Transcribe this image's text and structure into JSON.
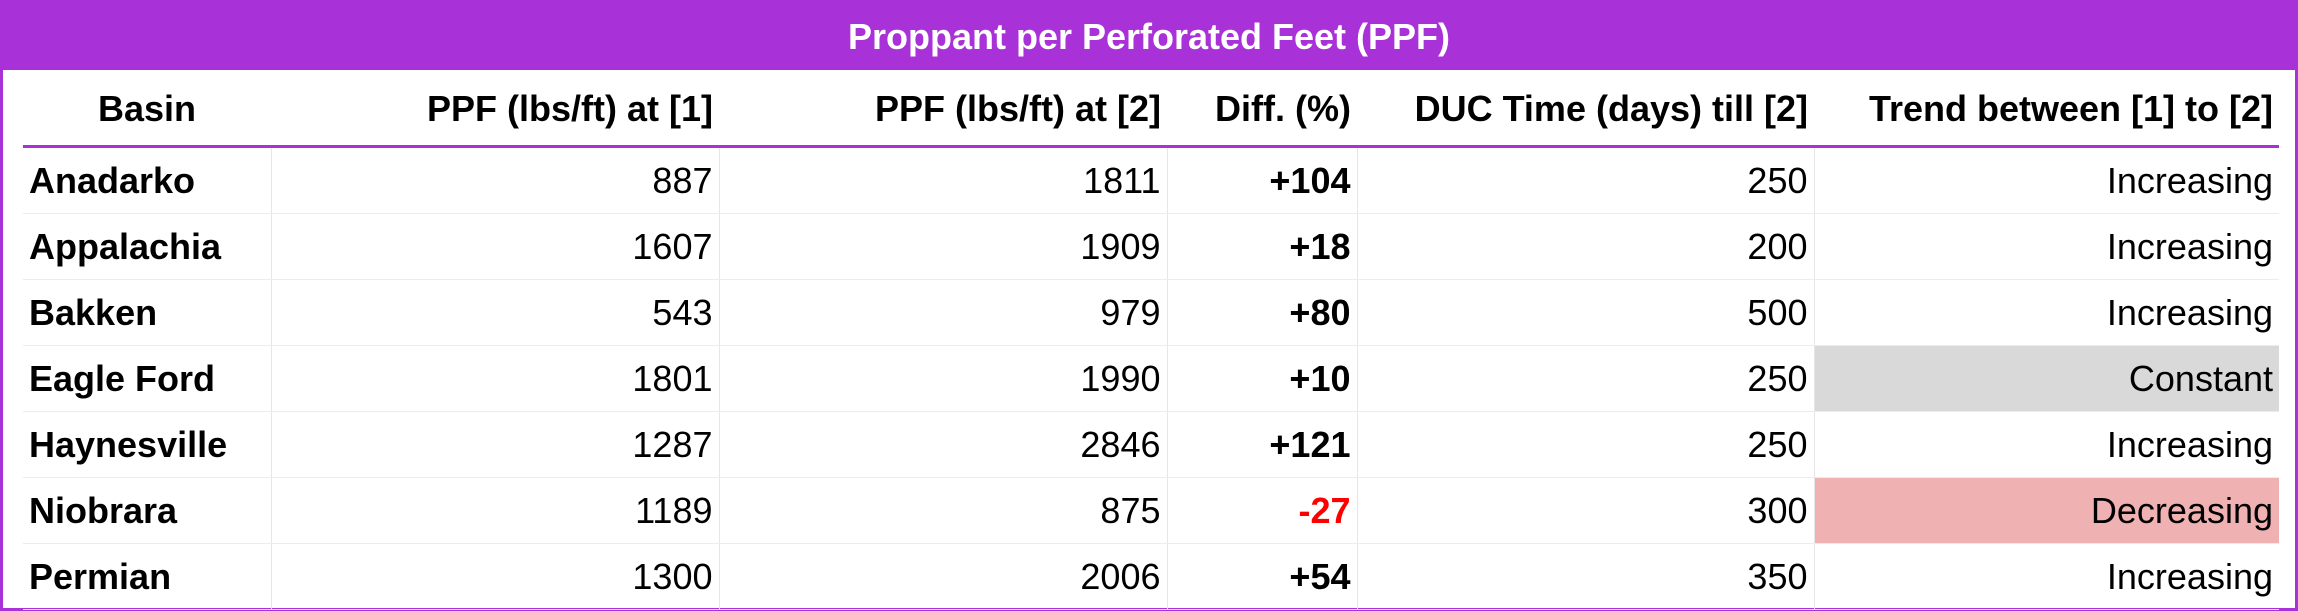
{
  "title": "Proppant per Perforated Feet (PPF)",
  "colors": {
    "accent": "#a832d8",
    "negative": "#ff0000",
    "constant_fill": "#d9d9d9",
    "decreasing_fill": "#efb1b1"
  },
  "table": {
    "headers": [
      "Basin",
      "PPF (lbs/ft) at [1]",
      "PPF (lbs/ft) at [2]",
      "Diff. (%)",
      "DUC Time (days) till [2]",
      "Trend between [1] to [2]"
    ],
    "rows": [
      {
        "basin": "Anadarko",
        "ppf1": "887",
        "ppf2": "1811",
        "diff": "+104",
        "duc": "250",
        "trend": "Increasing"
      },
      {
        "basin": "Appalachia",
        "ppf1": "1607",
        "ppf2": "1909",
        "diff": "+18",
        "duc": "200",
        "trend": "Increasing"
      },
      {
        "basin": "Bakken",
        "ppf1": "543",
        "ppf2": "979",
        "diff": "+80",
        "duc": "500",
        "trend": "Increasing"
      },
      {
        "basin": "Eagle Ford",
        "ppf1": "1801",
        "ppf2": "1990",
        "diff": "+10",
        "duc": "250",
        "trend": "Constant"
      },
      {
        "basin": "Haynesville",
        "ppf1": "1287",
        "ppf2": "2846",
        "diff": "+121",
        "duc": "250",
        "trend": "Increasing"
      },
      {
        "basin": "Niobrara",
        "ppf1": "1189",
        "ppf2": "875",
        "diff": "-27",
        "duc": "300",
        "trend": "Decreasing"
      },
      {
        "basin": "Permian",
        "ppf1": "1300",
        "ppf2": "2006",
        "diff": "+54",
        "duc": "350",
        "trend": "Increasing"
      }
    ]
  }
}
